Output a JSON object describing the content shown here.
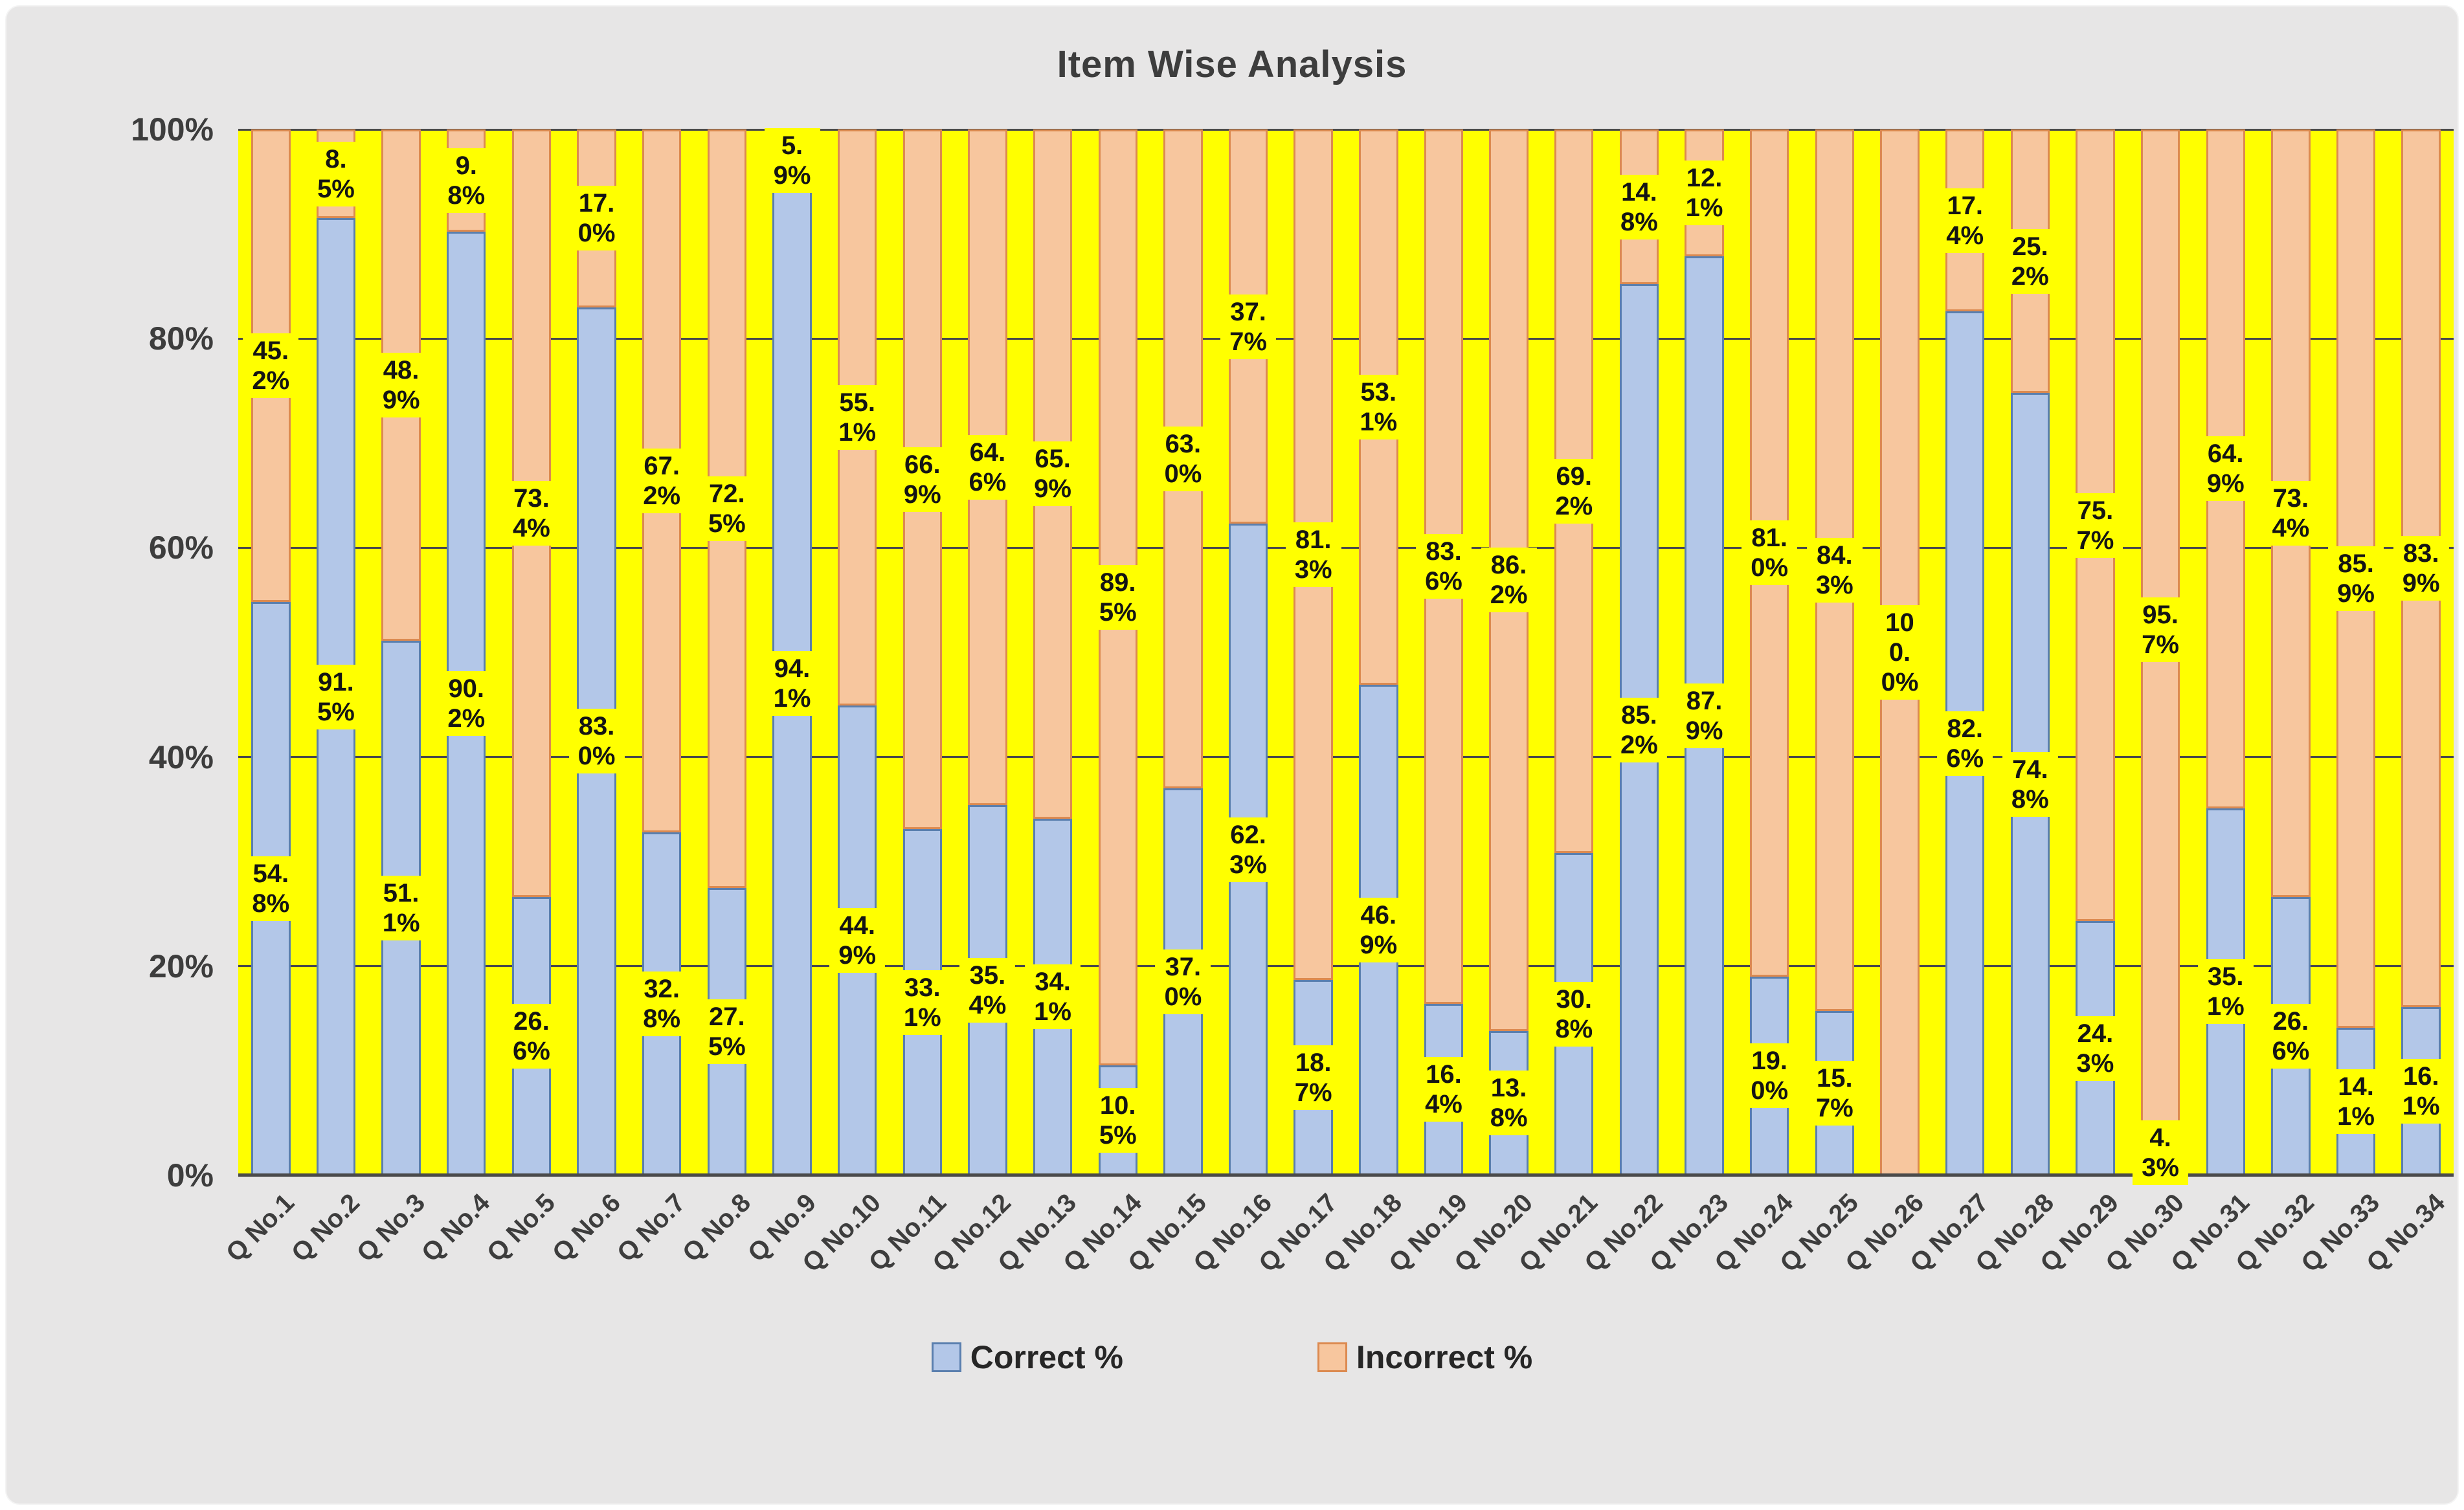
{
  "title": "Item Wise Analysis",
  "colors": {
    "background": "#e7e6e6",
    "plot_background": "#ffff00",
    "label_bg": "#ffff00",
    "correct_fill": "#b3c7e8",
    "correct_border": "#5a7fae",
    "incorrect_fill": "#f7c69e",
    "incorrect_border": "#dc8a50",
    "gridline": "#4a4a4a"
  },
  "y_axis": {
    "ticks": [
      "100%",
      "80%",
      "60%",
      "40%",
      "20%",
      "0%"
    ],
    "min": 0,
    "max": 100
  },
  "legend": {
    "correct": "Correct %",
    "incorrect": "Incorrect %"
  },
  "chart_data": {
    "type": "bar",
    "stacked": true,
    "stacked_100_percent": true,
    "title": "Item Wise Analysis",
    "xlabel": "",
    "ylabel": "",
    "ylim": [
      0,
      100
    ],
    "grid": true,
    "legend_position": "bottom",
    "categories": [
      "Q No.1",
      "Q No.2",
      "Q No.3",
      "Q No.4",
      "Q No.5",
      "Q No.6",
      "Q No.7",
      "Q No.8",
      "Q No.9",
      "Q No.10",
      "Q No.11",
      "Q No.12",
      "Q No.13",
      "Q No.14",
      "Q No.15",
      "Q No.16",
      "Q No.17",
      "Q No.18",
      "Q No.19",
      "Q No.20",
      "Q No.21",
      "Q No.22",
      "Q No.23",
      "Q No.24",
      "Q No.25",
      "Q No.26",
      "Q No.27",
      "Q No.28",
      "Q No.29",
      "Q No.30",
      "Q No.31",
      "Q No.32",
      "Q No.33",
      "Q No.34"
    ],
    "series": [
      {
        "name": "Correct %",
        "values": [
          54.8,
          91.5,
          51.1,
          90.2,
          26.6,
          83.0,
          32.8,
          27.5,
          94.1,
          44.9,
          33.1,
          35.4,
          34.1,
          10.5,
          37.0,
          62.3,
          18.7,
          46.9,
          16.4,
          13.8,
          30.8,
          85.2,
          87.9,
          19.0,
          15.7,
          0.0,
          82.6,
          74.8,
          24.3,
          4.3,
          35.1,
          26.6,
          14.1,
          16.1
        ]
      },
      {
        "name": "Incorrect %",
        "values": [
          45.2,
          8.5,
          48.9,
          9.8,
          73.4,
          17.0,
          67.2,
          72.5,
          5.9,
          55.1,
          66.9,
          64.6,
          65.9,
          89.5,
          63.0,
          37.7,
          81.3,
          53.1,
          83.6,
          86.2,
          69.2,
          14.8,
          12.1,
          81.0,
          84.3,
          100.0,
          17.4,
          25.2,
          75.7,
          95.7,
          64.9,
          73.4,
          85.9,
          83.9
        ]
      }
    ]
  }
}
